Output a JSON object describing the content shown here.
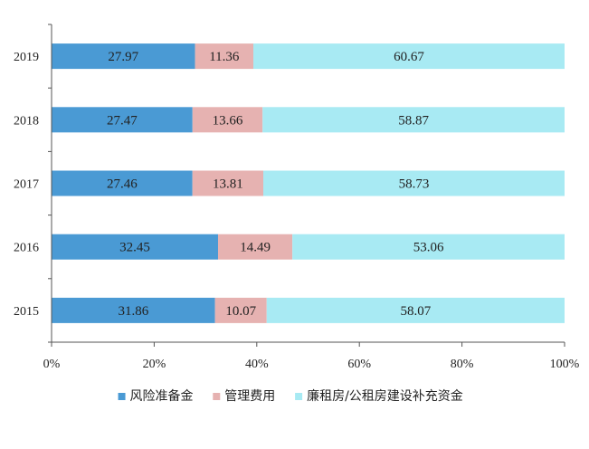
{
  "chart_data": {
    "type": "bar",
    "orientation": "horizontal",
    "stacked": "percent",
    "categories": [
      "2019",
      "2018",
      "2017",
      "2016",
      "2015"
    ],
    "series": [
      {
        "name": "风险准备金",
        "color": "#4a9ad4",
        "values": [
          27.97,
          27.47,
          27.46,
          32.45,
          31.86
        ]
      },
      {
        "name": "管理费用",
        "color": "#e6b2b1",
        "values": [
          11.36,
          13.66,
          13.81,
          14.49,
          10.07
        ]
      },
      {
        "name": "廉租房/公租房建设补充资金",
        "color": "#a8eaf3",
        "values": [
          60.67,
          58.87,
          58.73,
          53.06,
          58.07
        ]
      }
    ],
    "value_labels": [
      [
        "27.97",
        "11.36",
        "60.67"
      ],
      [
        "27.47",
        "13.66",
        "58.87"
      ],
      [
        "27.46",
        "13.81",
        "58.73"
      ],
      [
        "32.45",
        "14.49",
        "53.06"
      ],
      [
        "31.86",
        "10.07",
        "58.07"
      ]
    ],
    "x_ticks": [
      "0%",
      "20%",
      "40%",
      "60%",
      "80%",
      "100%"
    ],
    "xlim": [
      0,
      100
    ],
    "legend_position": "bottom",
    "grid": false
  }
}
